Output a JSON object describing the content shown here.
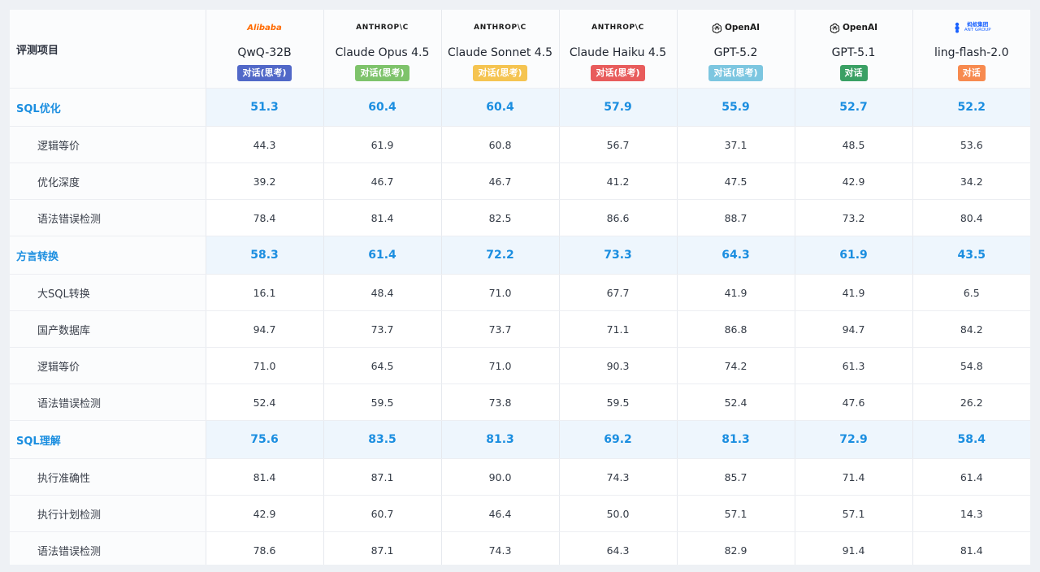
{
  "header": {
    "corner_label": "评测项目"
  },
  "models": [
    {
      "logo": "Alibaba",
      "logo_kind": "alibaba",
      "name": "QwQ-32B",
      "badge": "对话(思考)",
      "badge_color": "#5168c8"
    },
    {
      "logo": "ANTHROP\\C",
      "logo_kind": "anthropic",
      "name": "Claude Opus 4.5",
      "badge": "对话(思考)",
      "badge_color": "#7ec36b"
    },
    {
      "logo": "ANTHROP\\C",
      "logo_kind": "anthropic",
      "name": "Claude Sonnet 4.5",
      "badge": "对话(思考)",
      "badge_color": "#f5c451"
    },
    {
      "logo": "ANTHROP\\C",
      "logo_kind": "anthropic",
      "name": "Claude Haiku 4.5",
      "badge": "对话(思考)",
      "badge_color": "#e85c5c"
    },
    {
      "logo": "OpenAI",
      "logo_kind": "openai",
      "name": "GPT-5.2",
      "badge": "对话(思考)",
      "badge_color": "#7cc6e0"
    },
    {
      "logo": "OpenAI",
      "logo_kind": "openai",
      "name": "GPT-5.1",
      "badge": "对话",
      "badge_color": "#3aa064"
    },
    {
      "logo_cn": "蚂蚁集团",
      "logo_en": "ANT GROUP",
      "logo_kind": "ant",
      "name": "ling-flash-2.0",
      "badge": "对话",
      "badge_color": "#f78a4f"
    }
  ],
  "sections": [
    {
      "label": "SQL优化",
      "values": [
        "51.3",
        "60.4",
        "60.4",
        "57.9",
        "55.9",
        "52.7",
        "52.2"
      ],
      "rows": [
        {
          "label": "逻辑等价",
          "values": [
            "44.3",
            "61.9",
            "60.8",
            "56.7",
            "37.1",
            "48.5",
            "53.6"
          ]
        },
        {
          "label": "优化深度",
          "values": [
            "39.2",
            "46.7",
            "46.7",
            "41.2",
            "47.5",
            "42.9",
            "34.2"
          ]
        },
        {
          "label": "语法错误检测",
          "values": [
            "78.4",
            "81.4",
            "82.5",
            "86.6",
            "88.7",
            "73.2",
            "80.4"
          ]
        }
      ]
    },
    {
      "label": "方言转换",
      "values": [
        "58.3",
        "61.4",
        "72.2",
        "73.3",
        "64.3",
        "61.9",
        "43.5"
      ],
      "rows": [
        {
          "label": "大SQL转换",
          "values": [
            "16.1",
            "48.4",
            "71.0",
            "67.7",
            "41.9",
            "41.9",
            "6.5"
          ]
        },
        {
          "label": "国产数据库",
          "values": [
            "94.7",
            "73.7",
            "73.7",
            "71.1",
            "86.8",
            "94.7",
            "84.2"
          ]
        },
        {
          "label": "逻辑等价",
          "values": [
            "71.0",
            "64.5",
            "71.0",
            "90.3",
            "74.2",
            "61.3",
            "54.8"
          ]
        },
        {
          "label": "语法错误检测",
          "values": [
            "52.4",
            "59.5",
            "73.8",
            "59.5",
            "52.4",
            "47.6",
            "26.2"
          ]
        }
      ]
    },
    {
      "label": "SQL理解",
      "values": [
        "75.6",
        "83.5",
        "81.3",
        "69.2",
        "81.3",
        "72.9",
        "58.4"
      ],
      "rows": [
        {
          "label": "执行准确性",
          "values": [
            "81.4",
            "87.1",
            "90.0",
            "74.3",
            "85.7",
            "71.4",
            "61.4"
          ]
        },
        {
          "label": "执行计划检测",
          "values": [
            "42.9",
            "60.7",
            "46.4",
            "50.0",
            "57.1",
            "57.1",
            "14.3"
          ]
        },
        {
          "label": "语法错误检测",
          "values": [
            "78.6",
            "87.1",
            "74.3",
            "64.3",
            "82.9",
            "91.4",
            "81.4"
          ]
        }
      ]
    }
  ],
  "colors": {
    "section_text": "#1b8ee0",
    "section_bg": "#eef6fd"
  }
}
